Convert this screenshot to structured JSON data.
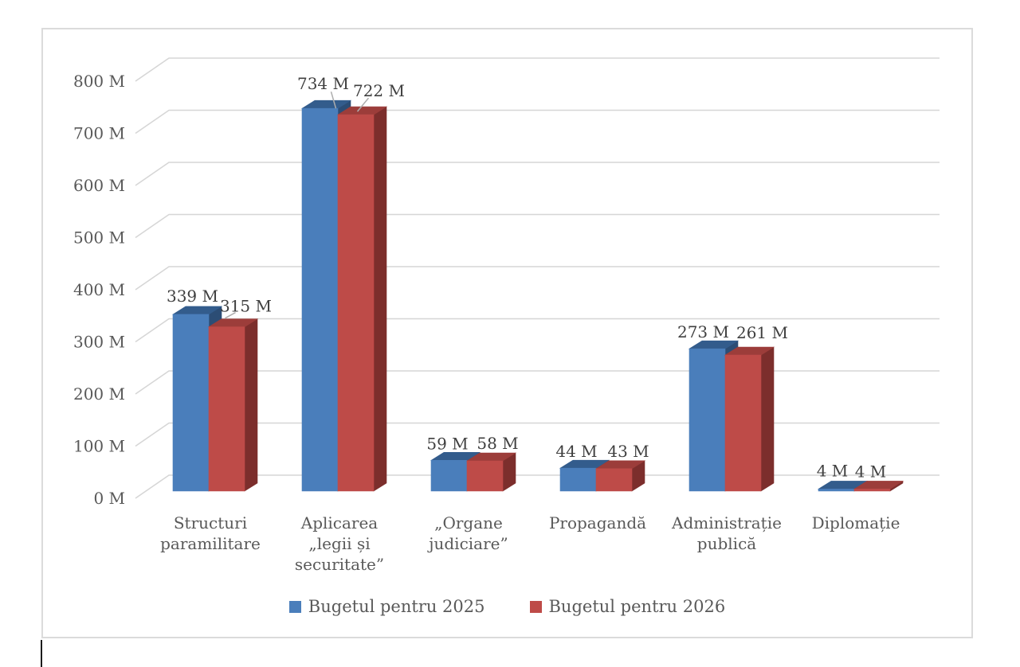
{
  "chart_data": {
    "type": "bar",
    "variant": "3d-clustered-column",
    "title": "",
    "categories": [
      "Structuri paramilitare",
      "Aplicarea „legii și securitate”",
      "„Organe judiciare”",
      "Propagandă",
      "Administrație publică",
      "Diplomație"
    ],
    "category_lines": [
      [
        "Structuri",
        "paramilitare"
      ],
      [
        "Aplicarea",
        "„legii și",
        "securitate”"
      ],
      [
        "„Organe",
        "judiciare”"
      ],
      [
        "Propagandă"
      ],
      [
        "Administrație",
        "publică"
      ],
      [
        "Diplomație"
      ]
    ],
    "series": [
      {
        "name": "Bugetul pentru 2025",
        "values": [
          339,
          734,
          59,
          44,
          273,
          4
        ],
        "labels": [
          "339 M",
          "734 M",
          "59 M",
          "44 M",
          "273 M",
          "4 M"
        ],
        "color": "#4A7EBB",
        "color_top": "#335C8C",
        "color_side": "#2C4D75"
      },
      {
        "name": "Bugetul pentru 2026",
        "values": [
          315,
          722,
          58,
          43,
          261,
          4
        ],
        "labels": [
          "315 M",
          "722 M",
          "58 M",
          "43 M",
          "261 M",
          "4 M"
        ],
        "color": "#BE4B48",
        "color_top": "#9C3D3A",
        "color_side": "#7C2E2C"
      }
    ],
    "y_axis": {
      "ticks": [
        "0 M",
        "100 M",
        "200 M",
        "300 M",
        "400 M",
        "500 M",
        "600 M",
        "700 M",
        "800 M"
      ],
      "ylim": [
        0,
        800
      ],
      "step": 100
    },
    "legend_position": "bottom",
    "grid": true,
    "colors": {
      "axis_text": "#595959",
      "data_label_text": "#3F3F3F",
      "gridline": "#D6D6D6",
      "frame_border": "#DBDBDB",
      "leader_line": "#ADADAD",
      "background": "#FFFFFF"
    }
  }
}
